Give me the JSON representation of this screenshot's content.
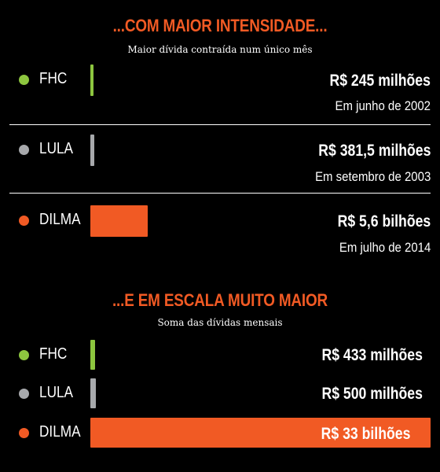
{
  "colors": {
    "fhc": "#8dc63f",
    "lula": "#a7a9ac",
    "dilma": "#f15a24",
    "accent": "#f15a24"
  },
  "chart_data": [
    {
      "type": "bar",
      "title": "...COM MAIOR INTENSIDADE...",
      "subtitle": "Maior dívida contraída num único mês",
      "categories": [
        "FHC",
        "LULA",
        "DILMA"
      ],
      "values": [
        245,
        381.5,
        5600
      ],
      "unit": "milhões de R$",
      "labels": [
        "R$ 245 milhões",
        "R$ 381,5 milhões",
        "R$ 5,6 bilhões"
      ],
      "dates": [
        "Em junho de 2002",
        "Em setembro de 2003",
        "Em julho de 2014"
      ],
      "max": 5600
    },
    {
      "type": "bar",
      "title": "...E EM ESCALA MUITO MAIOR",
      "subtitle": "Soma das dívidas mensais",
      "categories": [
        "FHC",
        "LULA",
        "DILMA"
      ],
      "values": [
        433,
        500,
        33000
      ],
      "unit": "milhões de R$",
      "labels": [
        "R$ 433 milhões",
        "R$ 500 milhões",
        "R$ 33 bilhões"
      ],
      "max": 33000
    }
  ]
}
